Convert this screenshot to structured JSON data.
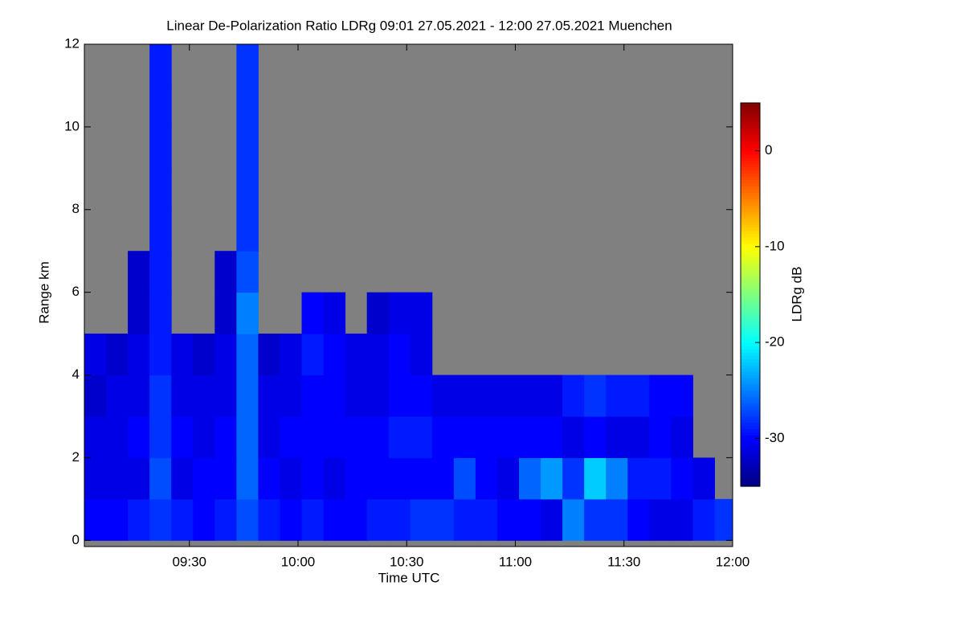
{
  "chart_data": {
    "type": "heatmap",
    "title": "Linear De-Polarization Ratio LDRg   09:01 27.05.2021 - 12:00 27.05.2021 Muenchen",
    "x_label": "Time UTC",
    "y_label": "Range km",
    "colorbar_label": "LDRg dB",
    "colormap": "jet",
    "missing_color": "#808080",
    "xlim": [
      541,
      720
    ],
    "xticks": [
      {
        "value": 570,
        "label": "09:30"
      },
      {
        "value": 600,
        "label": "10:00"
      },
      {
        "value": 630,
        "label": "10:30"
      },
      {
        "value": 660,
        "label": "11:00"
      },
      {
        "value": 690,
        "label": "11:30"
      },
      {
        "value": 720,
        "label": "12:00"
      }
    ],
    "ylim": [
      -0.15,
      12
    ],
    "yticks": [
      0,
      2,
      4,
      6,
      8,
      10,
      12
    ],
    "zlim": [
      -35,
      5
    ],
    "zticks": [
      0,
      -10,
      -20,
      -30
    ],
    "x": [
      544,
      550,
      556,
      562,
      568,
      574,
      580,
      586,
      592,
      598,
      604,
      610,
      616,
      622,
      628,
      634,
      640,
      646,
      652,
      658,
      664,
      670,
      676,
      682,
      688,
      694,
      700,
      706,
      712,
      718
    ],
    "y": [
      0.5,
      1.5,
      2.5,
      3.5,
      4.5,
      5.5,
      6.5,
      7.5,
      8.5,
      9.5,
      10.5,
      11.5
    ],
    "z": [
      [
        -30,
        -30,
        -29,
        -28,
        -29,
        -30,
        -29,
        -27,
        -29,
        -30,
        -29,
        -30,
        -30,
        -29,
        -29,
        -28,
        -28,
        -29,
        -29,
        -30,
        -30,
        -31,
        -25,
        -28,
        -28,
        -30,
        -31,
        -31,
        -29,
        -28
      ],
      [
        -31,
        -31,
        -31,
        -27,
        -31,
        -30,
        -30,
        -26,
        -30,
        -31,
        -30,
        -31,
        -30,
        -30,
        -30,
        -30,
        -30,
        -27,
        -30,
        -31,
        -26,
        -24,
        -28,
        -22,
        -25,
        -29,
        -29,
        -30,
        -31,
        null
      ],
      [
        -31,
        -31,
        -30,
        -28,
        -30,
        -31,
        -30,
        -26,
        -31,
        -30,
        -30,
        -30,
        -30,
        -30,
        -29,
        -29,
        -30,
        -30,
        -30,
        -30,
        -30,
        -30,
        -31,
        -30,
        -31,
        -31,
        -30,
        -31,
        null,
        null
      ],
      [
        -32,
        -31,
        -31,
        -28,
        -31,
        -31,
        -31,
        -26,
        -31,
        -31,
        -30,
        -30,
        -31,
        -31,
        -30,
        -30,
        -31,
        -31,
        -31,
        -31,
        -31,
        -31,
        -29,
        -28,
        -29,
        -29,
        -30,
        -30,
        null,
        null
      ],
      [
        -31,
        -32,
        -31,
        -29,
        -31,
        -32,
        -31,
        -26,
        -32,
        -31,
        -29,
        -30,
        -31,
        -31,
        -30,
        -31,
        null,
        null,
        null,
        null,
        null,
        null,
        null,
        null,
        null,
        null,
        null,
        null,
        null,
        null
      ],
      [
        null,
        null,
        -32,
        -29,
        null,
        null,
        -32,
        -25,
        null,
        null,
        -30,
        -31,
        null,
        -32,
        -31,
        -31,
        null,
        null,
        null,
        null,
        null,
        null,
        null,
        null,
        null,
        null,
        null,
        null,
        null,
        null
      ],
      [
        null,
        null,
        -32,
        -29,
        null,
        null,
        -32,
        -27,
        null,
        null,
        null,
        null,
        null,
        null,
        null,
        null,
        null,
        null,
        null,
        null,
        null,
        null,
        null,
        null,
        null,
        null,
        null,
        null,
        null,
        null
      ],
      [
        null,
        null,
        null,
        -29,
        null,
        null,
        null,
        -28,
        null,
        null,
        null,
        null,
        null,
        null,
        null,
        null,
        null,
        null,
        null,
        null,
        null,
        null,
        null,
        null,
        null,
        null,
        null,
        null,
        null,
        null
      ],
      [
        null,
        null,
        null,
        -29,
        null,
        null,
        null,
        -28,
        null,
        null,
        null,
        null,
        null,
        null,
        null,
        null,
        null,
        null,
        null,
        null,
        null,
        null,
        null,
        null,
        null,
        null,
        null,
        null,
        null,
        null
      ],
      [
        null,
        null,
        null,
        -29,
        null,
        null,
        null,
        -28,
        null,
        null,
        null,
        null,
        null,
        null,
        null,
        null,
        null,
        null,
        null,
        null,
        null,
        null,
        null,
        null,
        null,
        null,
        null,
        null,
        null,
        null
      ],
      [
        null,
        null,
        null,
        -29,
        null,
        null,
        null,
        -28,
        null,
        null,
        null,
        null,
        null,
        null,
        null,
        null,
        null,
        null,
        null,
        null,
        null,
        null,
        null,
        null,
        null,
        null,
        null,
        null,
        null,
        null
      ],
      [
        null,
        null,
        null,
        -29,
        null,
        null,
        null,
        -28,
        null,
        null,
        null,
        null,
        null,
        null,
        null,
        null,
        null,
        null,
        null,
        null,
        null,
        null,
        null,
        null,
        null,
        null,
        null,
        null,
        null,
        null
      ]
    ]
  }
}
